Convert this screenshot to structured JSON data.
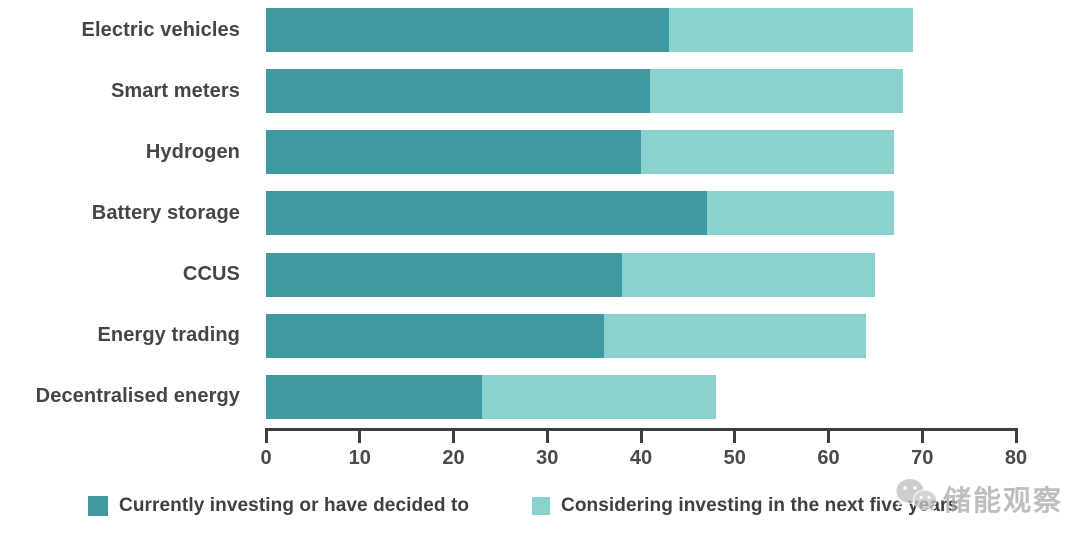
{
  "chart_data": {
    "type": "bar",
    "orientation": "horizontal",
    "stacked": true,
    "title": "",
    "xlabel": "",
    "ylabel": "",
    "categories": [
      "Electric vehicles",
      "Smart meters",
      "Hydrogen",
      "Battery storage",
      "CCUS",
      "Energy trading",
      "Decentralised energy"
    ],
    "series": [
      {
        "name": "Currently investing or have decided to",
        "color": "#3F99A1",
        "values": [
          43,
          41,
          40,
          47,
          38,
          36,
          23
        ]
      },
      {
        "name": "Considering investing in the next five years",
        "color": "#8BD1CE",
        "values": [
          26,
          27,
          27,
          20,
          27,
          28,
          25
        ]
      }
    ],
    "totals": [
      69,
      68,
      67,
      67,
      65,
      64,
      48
    ],
    "xlim": [
      0,
      80
    ],
    "xticks": [
      0,
      10,
      20,
      30,
      40,
      50,
      60,
      70,
      80
    ],
    "grid": false,
    "legend_position": "bottom"
  },
  "legend": {
    "item1": "Currently investing or have decided to",
    "item2": "Considering investing in the next five years"
  },
  "watermark": {
    "text": "储能观察",
    "logo": "wechat-logo"
  }
}
